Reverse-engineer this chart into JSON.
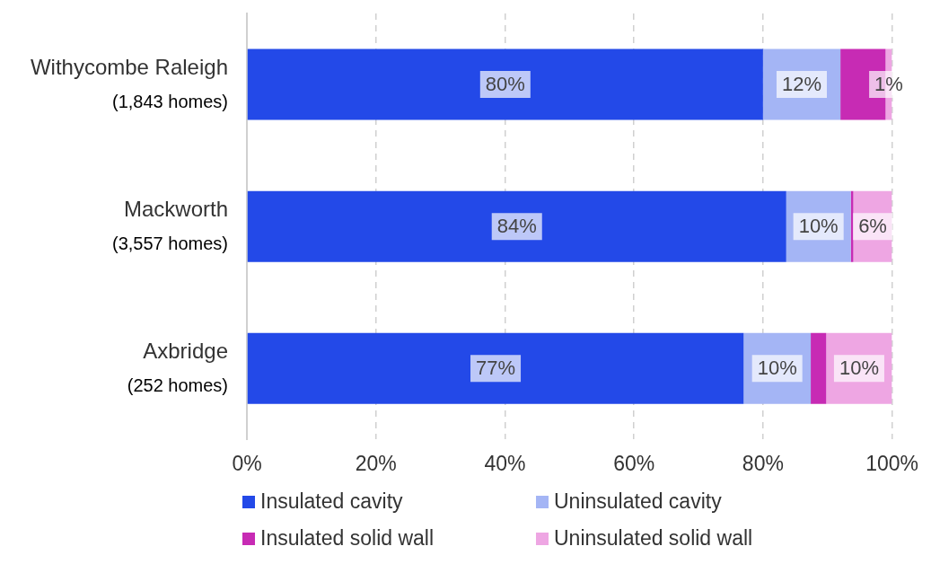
{
  "chart_data": {
    "type": "bar",
    "orientation": "horizontal",
    "stacked": true,
    "categories": [
      "Withycombe Raleigh\n(1,843 homes)",
      "Mackworth\n(3,557 homes)",
      "Axbridge\n(252 homes)"
    ],
    "series": [
      {
        "name": "Insulated cavity",
        "color": "#2349e8",
        "values": [
          80,
          83.6,
          77
        ],
        "value_labels": [
          "80%",
          "84%",
          "77%"
        ]
      },
      {
        "name": "Uninsulated cavity",
        "color": "#a4b5f5",
        "values": [
          12,
          10,
          10.4
        ],
        "value_labels": [
          "12%",
          "10%",
          "10%"
        ]
      },
      {
        "name": "Insulated solid wall",
        "color": "#c72bb4",
        "values": [
          7,
          0.4,
          2.4
        ],
        "value_labels": [
          null,
          null,
          null
        ]
      },
      {
        "name": "Uninsulated solid wall",
        "color": "#eea6e3",
        "values": [
          1,
          6,
          10.2
        ],
        "value_labels": [
          "1%",
          "6%",
          "10%"
        ]
      }
    ],
    "xlim": [
      0,
      100
    ],
    "xticks": [
      {
        "value": 0,
        "label": "0%"
      },
      {
        "value": 20,
        "label": "20%"
      },
      {
        "value": 40,
        "label": "40%"
      },
      {
        "value": 60,
        "label": "60%"
      },
      {
        "value": 80,
        "label": "80%"
      },
      {
        "value": 100,
        "label": "100%"
      }
    ],
    "grid": "x",
    "legend": "bottom"
  }
}
